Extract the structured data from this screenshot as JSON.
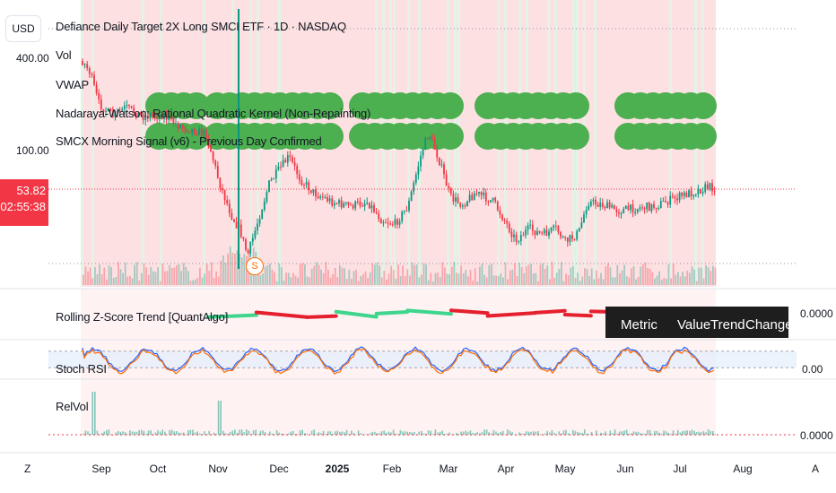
{
  "header": {
    "currency_button": "USD",
    "title": "Defiance Daily Target 2X Long SMCI ETF · 1D · NASDAQ",
    "indicators": [
      "Vol",
      "VWAP",
      "Nadaraya-Watson: Rational Quadratic Kernel (Non-Repainting)",
      "SMCX Morning Signal (v6) - Previous Day Confirmed"
    ]
  },
  "price_axis": {
    "labels": [
      "400.00",
      "100.00"
    ],
    "last_price": "53.82",
    "countdown": "02:55:38"
  },
  "signal_marker": "S",
  "panes": {
    "zscore": {
      "label": "Rolling Z-Score Trend [QuantAlgo]",
      "value": "0.0000"
    },
    "stoch_rsi": {
      "label": "Stoch RSI",
      "value": "0.00"
    },
    "relvol": {
      "label": "RelVol",
      "value": "0.0000"
    }
  },
  "metric_table": {
    "headers": [
      "Metric",
      "Value",
      "Trend",
      "Change"
    ]
  },
  "time_axis": {
    "months": [
      "Sep",
      "Oct",
      "Nov",
      "Dec",
      "2025",
      "Feb",
      "Mar",
      "Apr",
      "May",
      "Jun",
      "Jul",
      "Aug"
    ],
    "left_button": "Z",
    "right_button": "A"
  },
  "colors": {
    "bull": "#089981",
    "bear": "#f23645",
    "highlight_red": "#fde0e2",
    "highlight_green": "#e4f3e6",
    "signal_dots": "#4caf50",
    "zscore_bear": "#e5202e",
    "zscore_bull": "#3dd68c",
    "stoch_k": "#2962ff",
    "stoch_d": "#ff6d00",
    "stoch_band": "#e3eefc"
  }
}
